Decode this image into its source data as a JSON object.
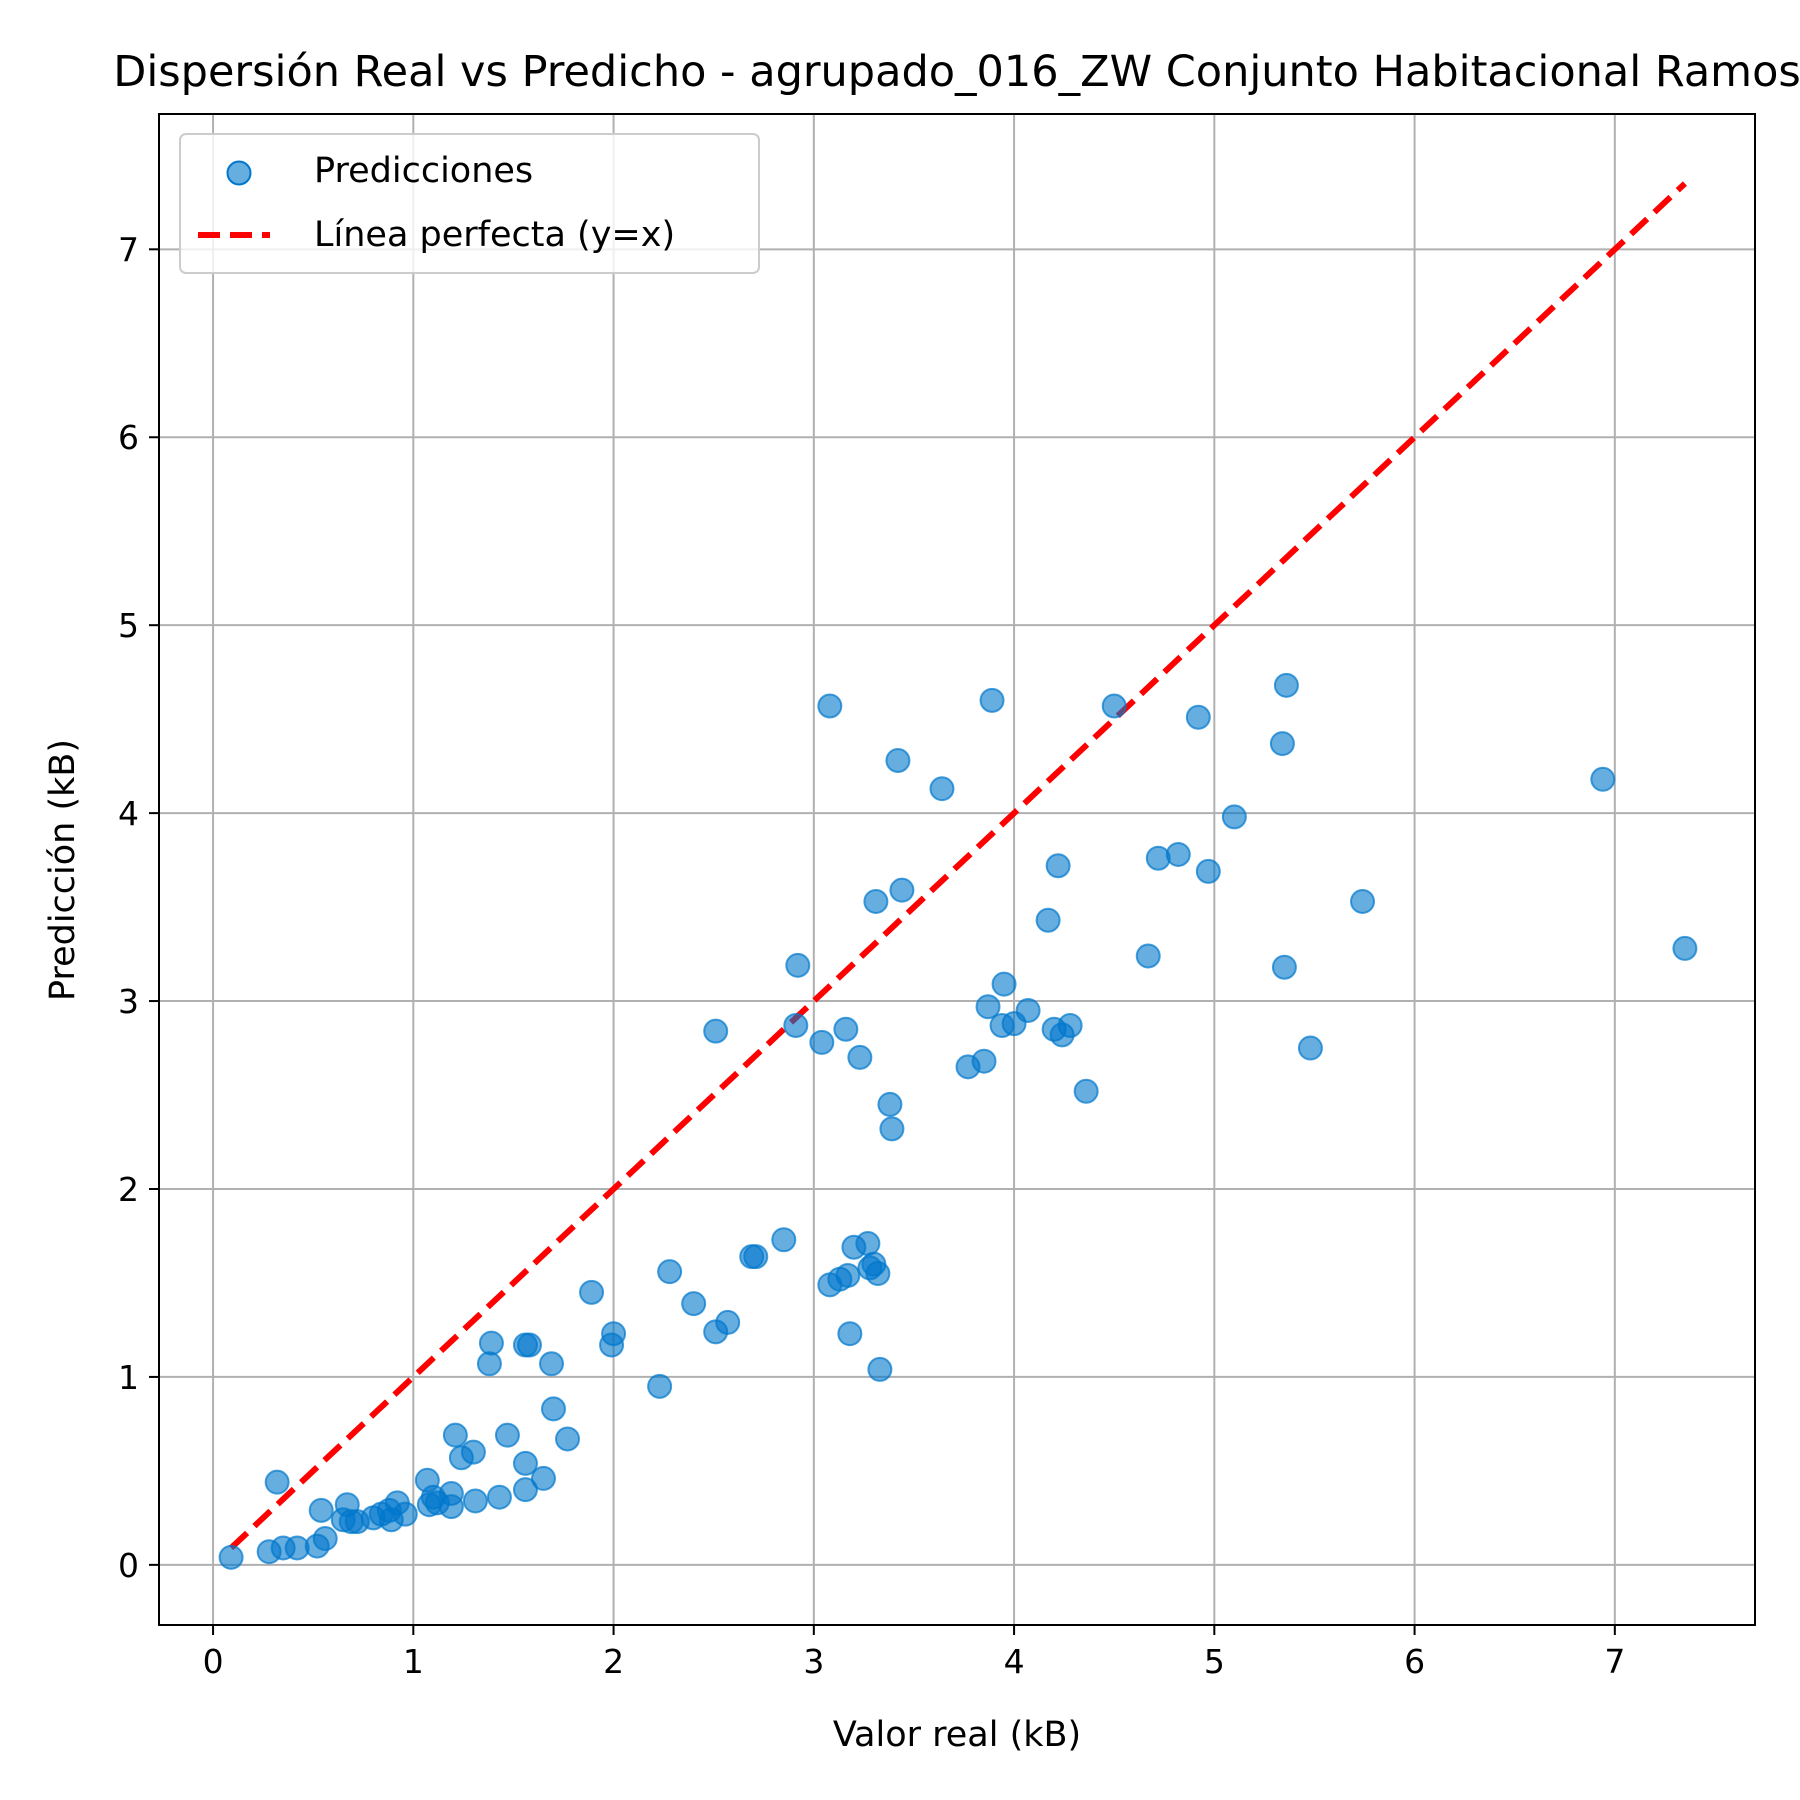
{
  "colors": {
    "point": "#0077cc",
    "perfect_line": "#ff0000",
    "grid": "#b0b0b0",
    "axis": "#000000",
    "legend_border": "#cccccc"
  },
  "chart_data": {
    "type": "scatter",
    "title": "Dispersión Real vs Predicho - agrupado_016_ZW Conjunto Habitacional Ramos",
    "xlabel": "Valor real (kB)",
    "ylabel": "Predicción (kB)",
    "xlim": [
      -0.27,
      7.7
    ],
    "ylim": [
      -0.32,
      7.72
    ],
    "xticks": [
      0,
      1,
      2,
      3,
      4,
      5,
      6,
      7
    ],
    "yticks": [
      0,
      1,
      2,
      3,
      4,
      5,
      6,
      7
    ],
    "grid": true,
    "legend_position": "upper-left",
    "series": [
      {
        "name": "Predicciones",
        "kind": "scatter",
        "points": [
          [
            0.09,
            0.04
          ],
          [
            0.28,
            0.07
          ],
          [
            0.35,
            0.09
          ],
          [
            0.42,
            0.09
          ],
          [
            0.52,
            0.1
          ],
          [
            0.56,
            0.14
          ],
          [
            0.32,
            0.44
          ],
          [
            0.54,
            0.29
          ],
          [
            0.67,
            0.32
          ],
          [
            0.65,
            0.24
          ],
          [
            0.69,
            0.23
          ],
          [
            0.72,
            0.23
          ],
          [
            0.8,
            0.25
          ],
          [
            0.84,
            0.27
          ],
          [
            0.88,
            0.29
          ],
          [
            0.89,
            0.24
          ],
          [
            0.92,
            0.33
          ],
          [
            0.96,
            0.27
          ],
          [
            1.07,
            0.45
          ],
          [
            1.08,
            0.32
          ],
          [
            1.1,
            0.36
          ],
          [
            1.12,
            0.33
          ],
          [
            1.19,
            0.38
          ],
          [
            1.19,
            0.31
          ],
          [
            1.21,
            0.69
          ],
          [
            1.24,
            0.57
          ],
          [
            1.3,
            0.6
          ],
          [
            1.31,
            0.34
          ],
          [
            1.38,
            1.07
          ],
          [
            1.39,
            1.18
          ],
          [
            1.43,
            0.36
          ],
          [
            1.47,
            0.69
          ],
          [
            1.56,
            0.54
          ],
          [
            1.56,
            1.17
          ],
          [
            1.58,
            1.17
          ],
          [
            1.56,
            0.4
          ],
          [
            1.65,
            0.46
          ],
          [
            1.69,
            1.07
          ],
          [
            1.7,
            0.83
          ],
          [
            1.77,
            0.67
          ],
          [
            1.89,
            1.45
          ],
          [
            1.99,
            1.17
          ],
          [
            2.0,
            1.23
          ],
          [
            2.23,
            0.95
          ],
          [
            2.28,
            1.56
          ],
          [
            2.4,
            1.39
          ],
          [
            2.51,
            1.24
          ],
          [
            2.57,
            1.29
          ],
          [
            2.51,
            2.84
          ],
          [
            2.69,
            1.64
          ],
          [
            2.71,
            1.64
          ],
          [
            2.85,
            1.73
          ],
          [
            2.91,
            2.87
          ],
          [
            2.92,
            3.19
          ],
          [
            3.04,
            2.78
          ],
          [
            3.08,
            1.49
          ],
          [
            3.08,
            4.57
          ],
          [
            3.13,
            1.52
          ],
          [
            3.16,
            2.85
          ],
          [
            3.17,
            1.54
          ],
          [
            3.18,
            1.23
          ],
          [
            3.2,
            1.69
          ],
          [
            3.23,
            2.7
          ],
          [
            3.27,
            1.71
          ],
          [
            3.28,
            1.58
          ],
          [
            3.3,
            1.6
          ],
          [
            3.31,
            3.53
          ],
          [
            3.32,
            1.55
          ],
          [
            3.33,
            1.04
          ],
          [
            3.38,
            2.45
          ],
          [
            3.39,
            2.32
          ],
          [
            3.42,
            4.28
          ],
          [
            3.44,
            3.59
          ],
          [
            3.64,
            4.13
          ],
          [
            3.77,
            2.65
          ],
          [
            3.85,
            2.68
          ],
          [
            3.87,
            2.97
          ],
          [
            3.89,
            4.6
          ],
          [
            3.94,
            2.87
          ],
          [
            3.95,
            3.09
          ],
          [
            4.0,
            2.88
          ],
          [
            4.07,
            2.95
          ],
          [
            4.17,
            3.43
          ],
          [
            4.2,
            2.85
          ],
          [
            4.22,
            3.72
          ],
          [
            4.24,
            2.82
          ],
          [
            4.28,
            2.87
          ],
          [
            4.36,
            2.52
          ],
          [
            4.5,
            4.57
          ],
          [
            4.67,
            3.24
          ],
          [
            4.72,
            3.76
          ],
          [
            4.82,
            3.78
          ],
          [
            4.92,
            4.51
          ],
          [
            4.97,
            3.69
          ],
          [
            5.1,
            3.98
          ],
          [
            5.34,
            4.37
          ],
          [
            5.35,
            3.18
          ],
          [
            5.36,
            4.68
          ],
          [
            5.48,
            2.75
          ],
          [
            5.74,
            3.53
          ],
          [
            6.94,
            4.18
          ],
          [
            7.35,
            3.28
          ]
        ]
      },
      {
        "name": "Línea perfecta (y=x)",
        "kind": "line",
        "x": [
          0.09,
          7.35
        ],
        "y": [
          0.09,
          7.35
        ]
      }
    ]
  }
}
